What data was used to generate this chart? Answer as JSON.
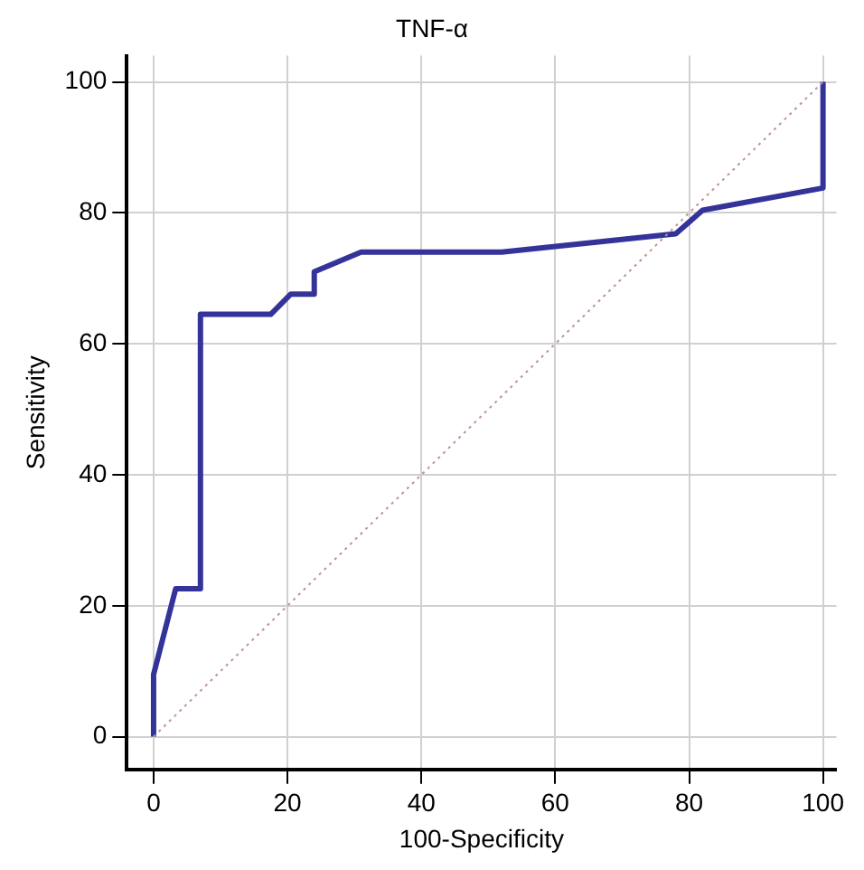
{
  "chart_data": {
    "type": "line",
    "title": "TNF-α",
    "xlabel": "100-Specificity",
    "ylabel": "Sensitivity",
    "xlim": [
      -4,
      102
    ],
    "ylim": [
      -5,
      104
    ],
    "xticks": [
      0,
      20,
      40,
      60,
      80,
      100
    ],
    "yticks": [
      0,
      20,
      40,
      60,
      80,
      100
    ],
    "grid": true,
    "legend": false,
    "marker": "none",
    "series": [
      {
        "color": "#c09098",
        "line_style": "dotted",
        "x": [
          0,
          100
        ],
        "values": [
          0,
          100
        ]
      },
      {
        "color": "#333399",
        "line_style": "solid",
        "x": [
          0,
          0,
          3.3,
          7,
          7,
          17.5,
          20.5,
          24,
          24,
          31,
          52,
          78,
          82,
          100,
          100
        ],
        "values": [
          0,
          9.5,
          22.6,
          22.6,
          64.5,
          64.5,
          67.6,
          67.6,
          71,
          74,
          74,
          76.8,
          80.4,
          83.8,
          100
        ]
      }
    ]
  }
}
